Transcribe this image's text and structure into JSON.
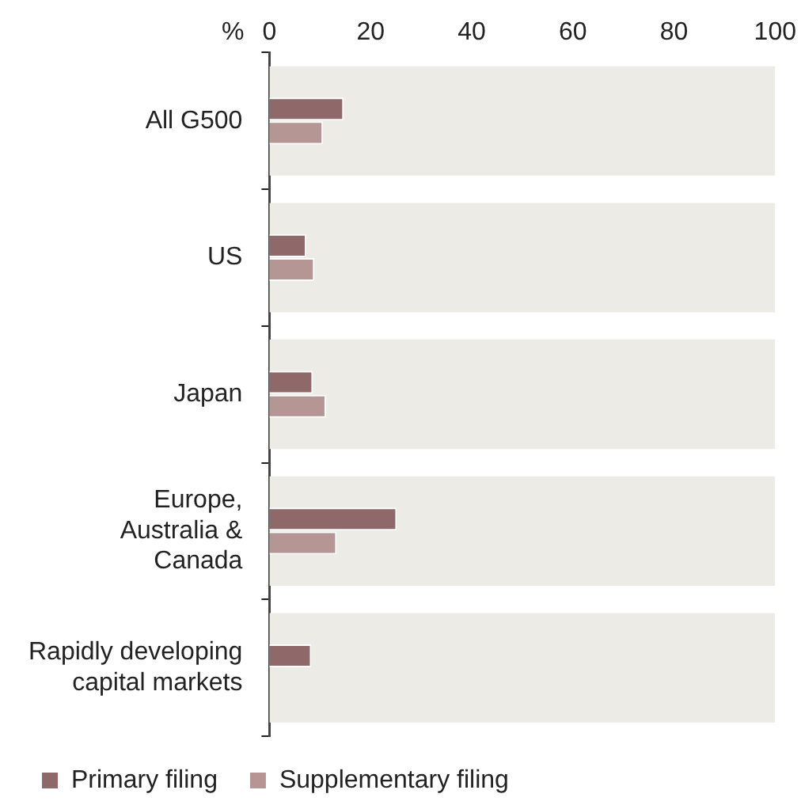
{
  "chart_data": {
    "type": "bar",
    "orientation": "horizontal",
    "xlabel": "%",
    "categories": [
      "All G500",
      "US",
      "Japan",
      "Europe,\nAustralia &\nCanada",
      "Rapidly developing\ncapital markets"
    ],
    "series": [
      {
        "color": "#ecebe6",
        "values": [
          100,
          100,
          100,
          100,
          100
        ]
      },
      {
        "name": "Primary filing",
        "color": "#8f6869",
        "values": [
          14.7,
          7.3,
          8.6,
          25.2,
          8.3
        ]
      },
      {
        "name": "Supplementary filing",
        "color": "#b69595",
        "values": [
          10.6,
          8.9,
          11.2,
          13.3,
          null
        ]
      }
    ],
    "xlim": [
      0,
      100
    ],
    "xticks": [
      0,
      20,
      40,
      60,
      80,
      100
    ],
    "grid": false,
    "legend": "bottom"
  }
}
